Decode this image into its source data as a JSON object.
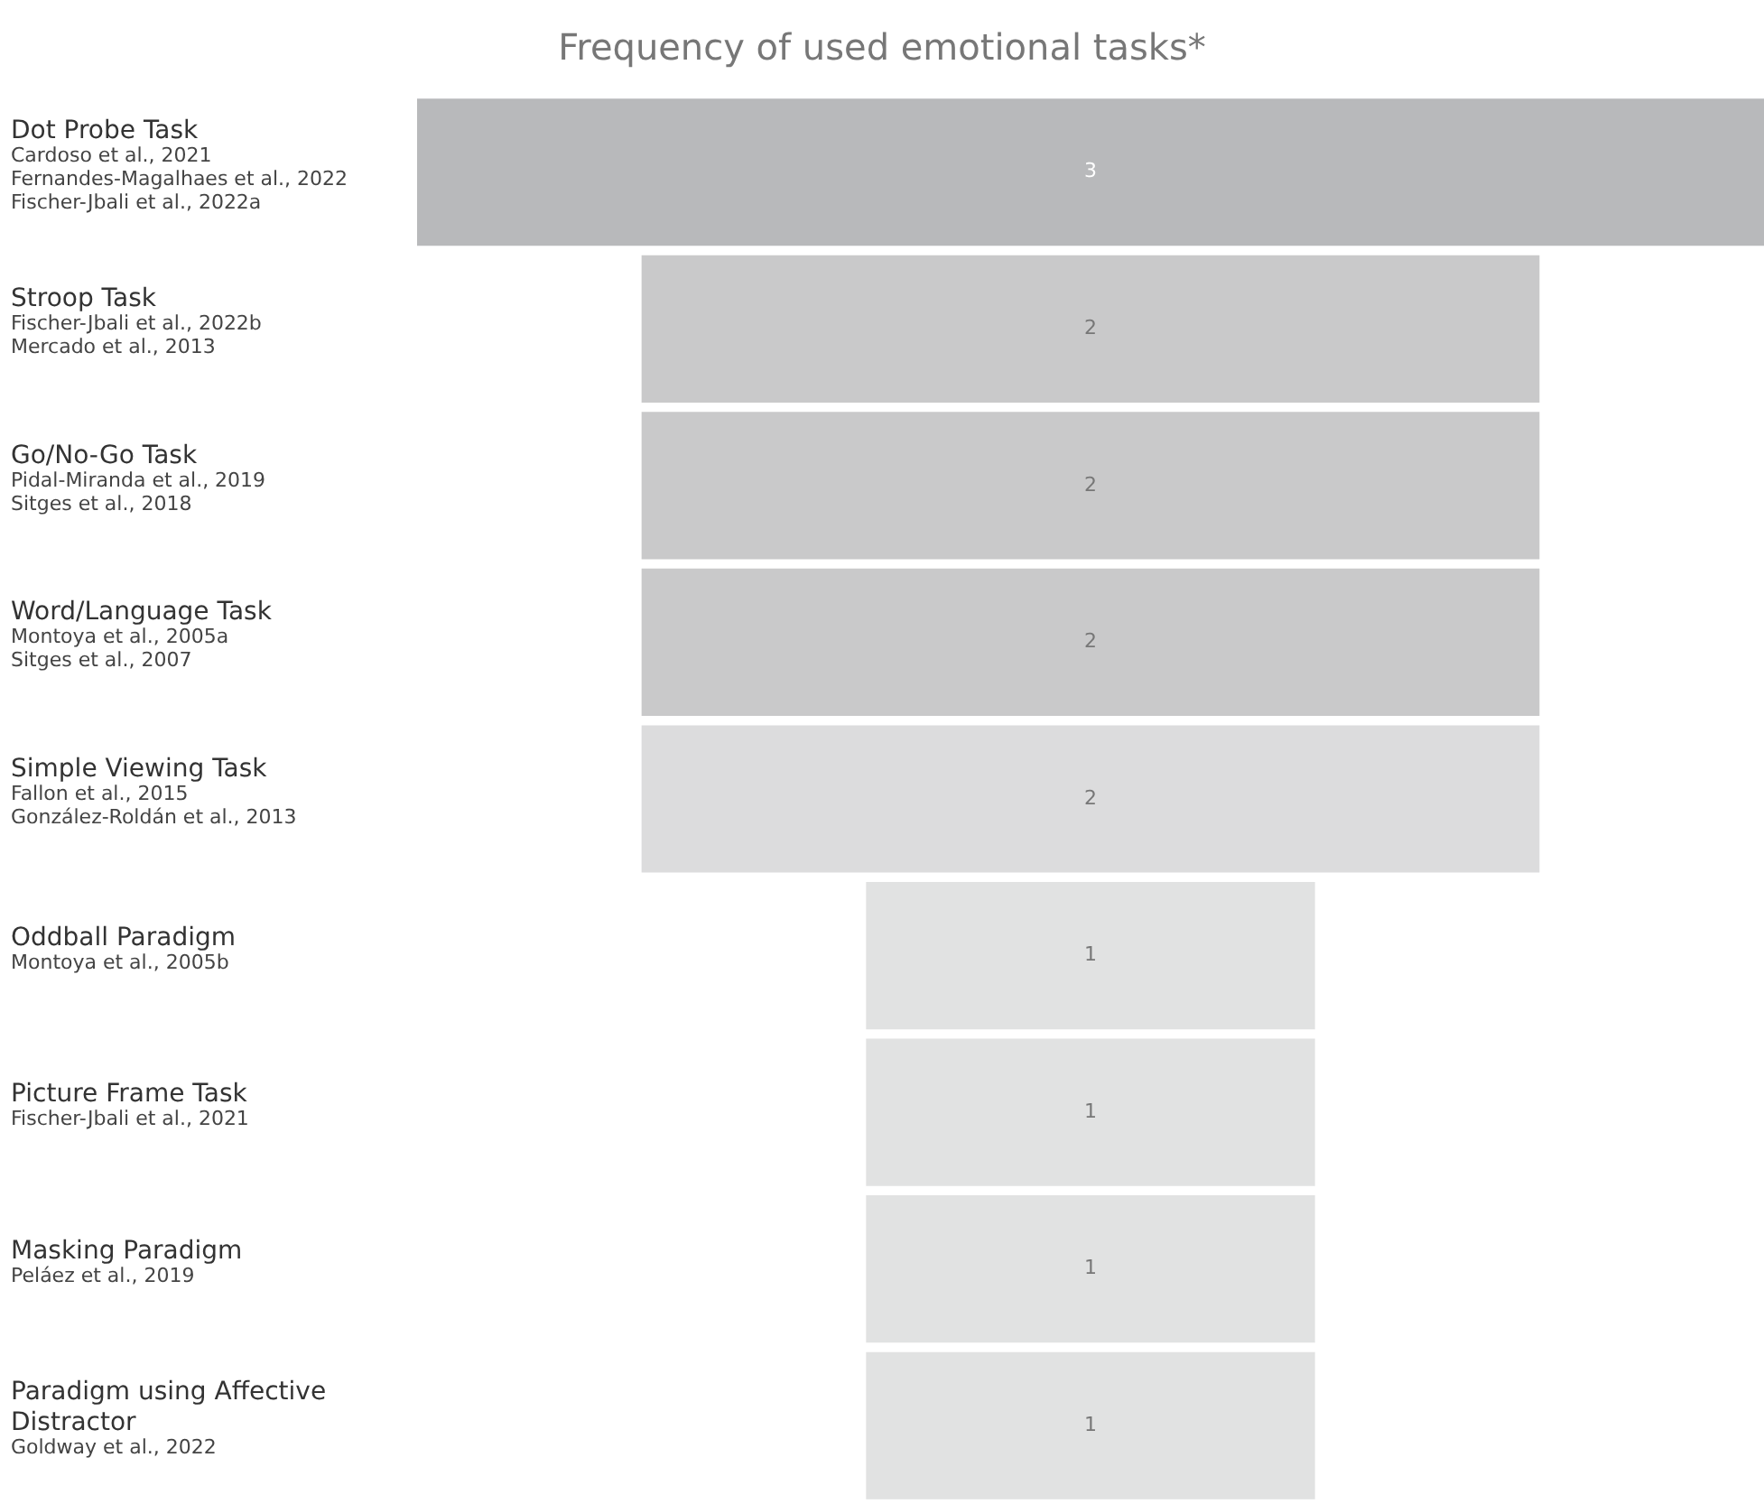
{
  "chart_data": {
    "type": "other",
    "title": "Frequency of used emotional tasks*",
    "categories": [
      "Dot Probe Task\nCardoso et al., 2021\nFernandes-Magalhaes et al., 2022\nFischer-Jbali et al., 2022a",
      "Stroop Task\nFischer-Jbali et al., 2022b\nMercado et al., 2013",
      "Go/No-Go Task\nPidal-Miranda et al., 2019\nSitges et al., 2018",
      "Word/Language Task\nMontoya et al., 2005a\nSitges et al., 2007",
      "Simple Viewing Task\nFallon et al., 2015\nGonzález-Roldán et al., 2013",
      "Oddball Paradigm\nMontoya et al., 2005b",
      "Picture Frame Task\nFischer-Jbali et al., 2021",
      "Masking Paradigm\nPeláez et al., 2019",
      "Paradigm using Affective\nDistractor\nGoldway et al., 2022"
    ],
    "values": [
      3,
      2,
      2,
      2,
      2,
      1,
      1,
      1,
      1
    ],
    "colors": [
      "#b8b9bb",
      "#c9c9ca",
      "#c9c9ca",
      "#c9c9ca",
      "#dcdcdd",
      "#e1e2e2",
      "#e1e2e2",
      "#e1e2e2",
      "#e1e2e2"
    ],
    "data_labels": true
  }
}
